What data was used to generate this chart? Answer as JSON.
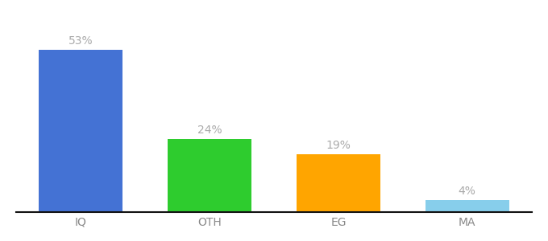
{
  "categories": [
    "IQ",
    "OTH",
    "EG",
    "MA"
  ],
  "values": [
    53,
    24,
    19,
    4
  ],
  "labels": [
    "53%",
    "24%",
    "19%",
    "4%"
  ],
  "bar_colors": [
    "#4472d4",
    "#2ecc2e",
    "#ffa500",
    "#87ceeb"
  ],
  "background_color": "#ffffff",
  "ylim": [
    0,
    63
  ],
  "bar_width": 0.65,
  "label_fontsize": 10,
  "tick_fontsize": 10,
  "label_color": "#aaaaaa",
  "tick_color": "#888888"
}
